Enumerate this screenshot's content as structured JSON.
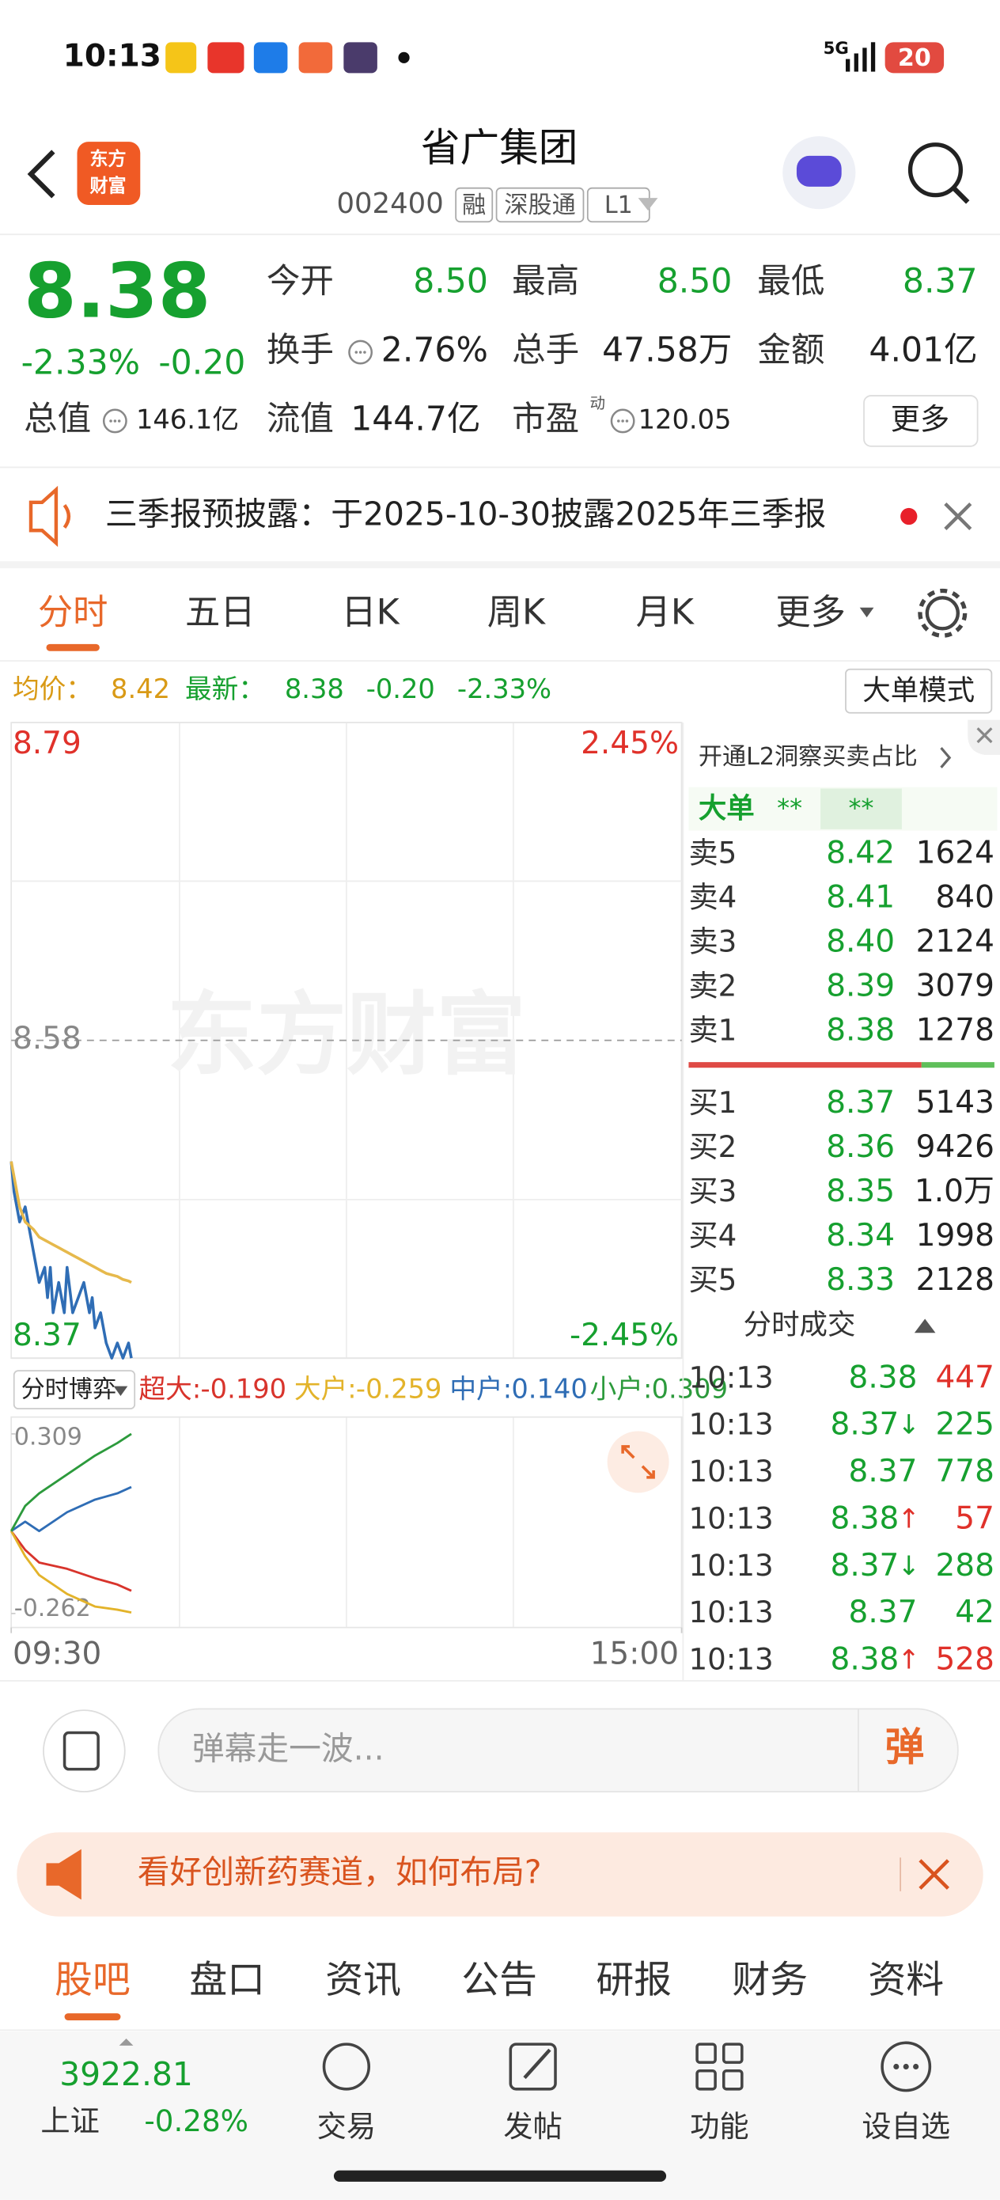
{
  "status_bar": {
    "time": "10:13",
    "network": "5G",
    "battery": "20"
  },
  "header": {
    "logo": [
      "东方",
      "财富"
    ],
    "title": "省广集团",
    "code": "002400",
    "tags": [
      "融",
      "深股通",
      "L1"
    ]
  },
  "quote": {
    "price": "8.38",
    "change_pct": "-2.33%",
    "change": "-0.20",
    "fields": [
      {
        "label": "今开",
        "value": "8.50"
      },
      {
        "label": "最高",
        "value": "8.50"
      },
      {
        "label": "最低",
        "value": "8.37"
      },
      {
        "label": "换手",
        "value": "2.76%"
      },
      {
        "label": "总手",
        "value": "47.58万"
      },
      {
        "label": "金额",
        "value": "4.01亿"
      },
      {
        "label": "总值",
        "value": "146.1亿"
      },
      {
        "label": "流值",
        "value": "144.7亿"
      },
      {
        "label": "市盈",
        "value": "120.05",
        "note": "动"
      }
    ],
    "more": "更多"
  },
  "notice": {
    "text": "三季报预披露：于2025-10-30披露2025年三季报"
  },
  "period_tabs": [
    "分时",
    "五日",
    "日K",
    "周K",
    "月K",
    "更多"
  ],
  "summary": {
    "avg_label": "均价：",
    "avg": "8.42",
    "latest_label": "最新：",
    "latest": "8.38",
    "change": "-0.20",
    "change_pct": "-2.33%",
    "mode_button": "大单模式"
  },
  "chart_data": [
    {
      "type": "line",
      "watermark": "东方财富",
      "grid": true,
      "x": [
        0,
        1,
        3,
        5,
        8,
        10,
        12,
        13,
        14,
        15,
        17,
        19,
        20,
        22,
        24,
        26,
        28,
        29,
        30,
        32,
        34,
        36,
        38,
        40,
        42,
        43
      ],
      "xlim": [
        0,
        240
      ],
      "xticks": [
        {
          "value": 0,
          "label": "09:30"
        },
        {
          "value": 240,
          "label": "15:00"
        }
      ],
      "ylim": [
        8.37,
        8.79
      ],
      "yticks": [
        8.79,
        8.58,
        8.37
      ],
      "y2lim": [
        -2.45,
        2.45
      ],
      "y2ticks": [
        {
          "value": 2.45,
          "label": "2.45%"
        },
        {
          "value": -2.45,
          "label": "-2.45%"
        }
      ],
      "series": [
        {
          "color": "#2f6db5",
          "values": [
            8.5,
            8.48,
            8.46,
            8.47,
            8.44,
            8.42,
            8.43,
            8.41,
            8.43,
            8.4,
            8.42,
            8.4,
            8.43,
            8.4,
            8.41,
            8.42,
            8.4,
            8.41,
            8.39,
            8.4,
            8.38,
            8.37,
            8.38,
            8.37,
            8.38,
            8.37
          ]
        },
        {
          "color": "#e6b94c",
          "values": [
            8.5,
            8.49,
            8.47,
            8.46,
            8.455,
            8.45,
            8.448,
            8.447,
            8.446,
            8.445,
            8.443,
            8.441,
            8.44,
            8.438,
            8.436,
            8.434,
            8.432,
            8.431,
            8.43,
            8.428,
            8.426,
            8.425,
            8.424,
            8.422,
            8.421,
            8.42
          ]
        }
      ]
    },
    {
      "type": "line",
      "title": "分时博弈",
      "separator": ":",
      "x": [
        0,
        5,
        10,
        20,
        30,
        38,
        43
      ],
      "xlim": [
        0,
        240
      ],
      "ylim": [
        -0.262,
        0.309
      ],
      "yticks": [
        0.309,
        -0.262
      ],
      "series": [
        {
          "name": "超大",
          "color": "#d8342c",
          "values": [
            0,
            -0.06,
            -0.1,
            -0.12,
            -0.15,
            -0.17,
            -0.19
          ],
          "latest": {
            "value": -0.19,
            "label": "-0.190"
          }
        },
        {
          "name": "大户",
          "color": "#e3b32a",
          "values": [
            0,
            -0.08,
            -0.14,
            -0.2,
            -0.24,
            -0.25,
            -0.259
          ],
          "latest": {
            "value": -0.259,
            "label": "-0.259"
          }
        },
        {
          "name": "中户",
          "color": "#2f6db5",
          "values": [
            0,
            0.03,
            0,
            0.06,
            0.1,
            0.12,
            0.14
          ],
          "latest": {
            "value": 0.14,
            "label": "0.140"
          }
        },
        {
          "name": "小户",
          "color": "#2c9a3c",
          "values": [
            0,
            0.08,
            0.12,
            0.18,
            0.24,
            0.28,
            0.309
          ],
          "latest": {
            "value": 0.309,
            "label": "0.309"
          }
        }
      ]
    }
  ],
  "order_book": {
    "banner": "开通L2洞察买卖占比",
    "big_order": {
      "label": "大单",
      "values": [
        "**",
        "**"
      ]
    },
    "asks": [
      {
        "label": "卖5",
        "price": "8.42",
        "volume": "1624"
      },
      {
        "label": "卖4",
        "price": "8.41",
        "volume": "840"
      },
      {
        "label": "卖3",
        "price": "8.40",
        "volume": "2124"
      },
      {
        "label": "卖2",
        "price": "8.39",
        "volume": "3079"
      },
      {
        "label": "卖1",
        "price": "8.38",
        "volume": "1278"
      }
    ],
    "bids": [
      {
        "label": "买1",
        "price": "8.37",
        "volume": "5143"
      },
      {
        "label": "买2",
        "price": "8.36",
        "volume": "9426"
      },
      {
        "label": "买3",
        "price": "8.35",
        "volume": "1.0万"
      },
      {
        "label": "买4",
        "price": "8.34",
        "volume": "1998"
      },
      {
        "label": "买5",
        "price": "8.33",
        "volume": "2128"
      }
    ]
  },
  "trades": {
    "title": "分时成交",
    "rows": [
      {
        "time": "10:13",
        "price": "8.38",
        "volume": "447",
        "side": "buy"
      },
      {
        "time": "10:13",
        "price": "8.37",
        "arrow": "↓",
        "volume": "225",
        "side": "sell"
      },
      {
        "time": "10:13",
        "price": "8.37",
        "volume": "778",
        "side": "sell"
      },
      {
        "time": "10:13",
        "price": "8.38",
        "arrow": "↑",
        "volume": "57",
        "side": "buy"
      },
      {
        "time": "10:13",
        "price": "8.37",
        "arrow": "↓",
        "volume": "288",
        "side": "sell"
      },
      {
        "time": "10:13",
        "price": "8.37",
        "volume": "42",
        "side": "sell"
      },
      {
        "time": "10:13",
        "price": "8.38",
        "arrow": "↑",
        "volume": "528",
        "side": "buy"
      }
    ]
  },
  "danmu": {
    "placeholder": "弹幕走一波...",
    "button": "弹"
  },
  "promo": {
    "text": "看好创新药赛道，如何布局?"
  },
  "content_tabs": [
    "股吧",
    "盘口",
    "资讯",
    "公告",
    "研报",
    "财务",
    "资料"
  ],
  "index": {
    "value": "3922.81",
    "name": "上证",
    "change_pct": "-0.28%"
  },
  "nav": [
    "交易",
    "发帖",
    "功能",
    "设自选"
  ]
}
